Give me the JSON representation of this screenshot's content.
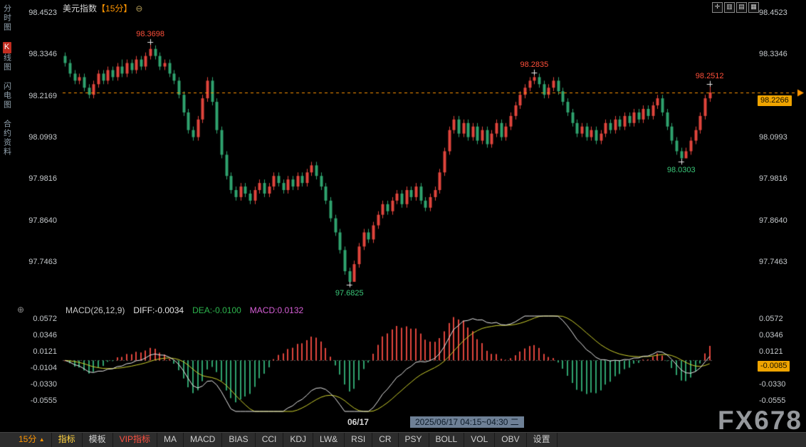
{
  "header": {
    "title": "美元指数",
    "interval_badge": "【15分】",
    "zoom_out_glyph": "⊖"
  },
  "top_right_icons": [
    {
      "name": "move-icon",
      "glyph": "✛"
    },
    {
      "name": "single-panel-icon",
      "glyph": "▥"
    },
    {
      "name": "dual-panel-icon",
      "glyph": "▤"
    },
    {
      "name": "grid-panel-icon",
      "glyph": "▦"
    }
  ],
  "sidebar": {
    "items": [
      {
        "prefix": "",
        "label": "分时图",
        "active": false
      },
      {
        "prefix": "K",
        "label": "线图",
        "active": true
      },
      {
        "prefix": "",
        "label": "闪电图",
        "active": false
      },
      {
        "prefix": "",
        "label": "合约资料",
        "active": false
      }
    ]
  },
  "price_axis": {
    "tick_labels": [
      "98.4523",
      "98.3346",
      "98.2169",
      "98.0993",
      "97.9816",
      "97.8640",
      "97.7463"
    ],
    "current_label": "98.2266"
  },
  "macd_axis": {
    "tick_labels": [
      "0.0572",
      "0.0346",
      "0.0121",
      "-0.0104",
      "-0.0330",
      "-0.0555"
    ],
    "current_label": "-0.0085"
  },
  "macd_header": {
    "name": "MACD(26,12,9)",
    "diff": "DIFF:-0.0034",
    "dea": "DEA:-0.0100",
    "macd": "MACD:0.0132"
  },
  "x_axis": {
    "date_label": "06/17",
    "timestamp_label": "2025/06/17 04:15~04:30 二"
  },
  "toolbar": {
    "interval_label": "15分",
    "interval_arrow": "▲",
    "items": [
      {
        "label": "指标",
        "style": "yellow"
      },
      {
        "label": "模板",
        "style": "normal"
      },
      {
        "label": "VIP指标",
        "style": "red"
      },
      {
        "label": "MA",
        "style": "normal"
      },
      {
        "label": "MACD",
        "style": "normal"
      },
      {
        "label": "BIAS",
        "style": "normal"
      },
      {
        "label": "CCI",
        "style": "normal"
      },
      {
        "label": "KDJ",
        "style": "normal"
      },
      {
        "label": "LW&",
        "style": "normal"
      },
      {
        "label": "RSI",
        "style": "normal"
      },
      {
        "label": "CR",
        "style": "normal"
      },
      {
        "label": "PSY",
        "style": "normal"
      },
      {
        "label": "BOLL",
        "style": "normal"
      },
      {
        "label": "VOL",
        "style": "normal"
      },
      {
        "label": "OBV",
        "style": "normal"
      },
      {
        "label": "设置",
        "style": "normal"
      }
    ]
  },
  "watermark": {
    "text": "FX678"
  },
  "indicator_icon_glyph": "⊕",
  "colors": {
    "up": "#e0453c",
    "down": "#2fa26e",
    "diff_line": "#eaeaea",
    "dea_line": "#cfd22e",
    "hist_up": "#e0453c",
    "hist_down": "#2fa26e",
    "accent": "#ff9500",
    "marker_bg": "#efa400",
    "marker_text": "#161000",
    "annotation_up": "#ff4f3a",
    "annotation_down": "#3ac779",
    "zero_line": "#555555"
  },
  "chart_data": [
    {
      "type": "candlestick",
      "symbol": "美元指数",
      "interval": "15分",
      "y_ticks": [
        98.4523,
        98.3346,
        98.2169,
        98.0993,
        97.9816,
        97.864,
        97.7463
      ],
      "ylim": [
        97.656,
        98.4523
      ],
      "current_price": 98.2266,
      "x_date_label": {
        "text": "06/17",
        "fraction": 0.455
      },
      "annotations": [
        {
          "index": 18,
          "price": 98.3698,
          "label": "98.3698",
          "side": "above",
          "color": "#ff4f3a"
        },
        {
          "index": 60,
          "price": 97.6825,
          "label": "97.6825",
          "side": "below",
          "color": "#3ac779"
        },
        {
          "index": 99,
          "price": 98.2835,
          "label": "98.2835",
          "side": "above",
          "color": "#ff4f3a"
        },
        {
          "index": 130,
          "price": 98.0303,
          "label": "98.0303",
          "side": "below",
          "color": "#3ac779"
        },
        {
          "index": 136,
          "price": 98.2512,
          "label": "98.2512",
          "side": "above",
          "color": "#ff4f3a"
        }
      ],
      "candles": [
        [
          98.33,
          98.34,
          98.3,
          98.31
        ],
        [
          98.31,
          98.32,
          98.27,
          98.28
        ],
        [
          98.28,
          98.29,
          98.25,
          98.26
        ],
        [
          98.26,
          98.28,
          98.25,
          98.27
        ],
        [
          98.27,
          98.28,
          98.23,
          98.24
        ],
        [
          98.24,
          98.25,
          98.21,
          98.22
        ],
        [
          98.22,
          98.26,
          98.21,
          98.25
        ],
        [
          98.25,
          98.29,
          98.24,
          98.28
        ],
        [
          98.28,
          98.29,
          98.25,
          98.26
        ],
        [
          98.26,
          98.3,
          98.25,
          98.29
        ],
        [
          98.29,
          98.3,
          98.26,
          98.27
        ],
        [
          98.27,
          98.31,
          98.26,
          98.3
        ],
        [
          98.3,
          98.32,
          98.27,
          98.28
        ],
        [
          98.28,
          98.32,
          98.27,
          98.31
        ],
        [
          98.31,
          98.32,
          98.28,
          98.29
        ],
        [
          98.29,
          98.33,
          98.28,
          98.32
        ],
        [
          98.32,
          98.33,
          98.29,
          98.3
        ],
        [
          98.3,
          98.34,
          98.29,
          98.33
        ],
        [
          98.33,
          98.3698,
          98.32,
          98.35
        ],
        [
          98.35,
          98.36,
          98.32,
          98.33
        ],
        [
          98.33,
          98.34,
          98.29,
          98.3
        ],
        [
          98.3,
          98.32,
          98.29,
          98.31
        ],
        [
          98.31,
          98.32,
          98.27,
          98.28
        ],
        [
          98.28,
          98.29,
          98.25,
          98.26
        ],
        [
          98.26,
          98.27,
          98.21,
          98.22
        ],
        [
          98.22,
          98.23,
          98.16,
          98.17
        ],
        [
          98.17,
          98.18,
          98.11,
          98.12
        ],
        [
          98.12,
          98.13,
          98.09,
          98.1
        ],
        [
          98.1,
          98.16,
          98.09,
          98.15
        ],
        [
          98.15,
          98.22,
          98.14,
          98.21
        ],
        [
          98.21,
          98.27,
          98.2,
          98.26
        ],
        [
          98.26,
          98.27,
          98.19,
          98.2
        ],
        [
          98.2,
          98.21,
          98.11,
          98.12
        ],
        [
          98.12,
          98.13,
          98.04,
          98.05
        ],
        [
          98.05,
          98.06,
          97.98,
          97.99
        ],
        [
          97.99,
          98.0,
          97.94,
          97.95
        ],
        [
          97.95,
          97.96,
          97.92,
          97.93
        ],
        [
          97.93,
          97.97,
          97.92,
          97.96
        ],
        [
          97.96,
          97.97,
          97.93,
          97.94
        ],
        [
          97.94,
          97.95,
          97.91,
          97.92
        ],
        [
          97.92,
          97.96,
          97.91,
          97.95
        ],
        [
          97.95,
          97.98,
          97.94,
          97.97
        ],
        [
          97.97,
          97.98,
          97.93,
          97.94
        ],
        [
          97.94,
          97.97,
          97.93,
          97.96
        ],
        [
          97.96,
          98.0,
          97.95,
          97.99
        ],
        [
          97.99,
          98.0,
          97.96,
          97.97
        ],
        [
          97.97,
          97.98,
          97.94,
          97.95
        ],
        [
          97.95,
          97.99,
          97.94,
          97.98
        ],
        [
          97.98,
          97.99,
          97.95,
          97.96
        ],
        [
          97.96,
          98.0,
          97.95,
          97.99
        ],
        [
          97.99,
          98.0,
          97.96,
          97.97
        ],
        [
          97.97,
          98.01,
          97.96,
          98.0
        ],
        [
          98.0,
          98.03,
          97.99,
          98.02
        ],
        [
          98.02,
          98.03,
          97.98,
          97.99
        ],
        [
          97.99,
          98.0,
          97.95,
          97.96
        ],
        [
          97.96,
          97.97,
          97.91,
          97.92
        ],
        [
          97.92,
          97.93,
          97.86,
          97.87
        ],
        [
          97.87,
          97.88,
          97.82,
          97.83
        ],
        [
          97.83,
          97.84,
          97.77,
          97.78
        ],
        [
          97.78,
          97.79,
          97.71,
          97.72
        ],
        [
          97.72,
          97.73,
          97.6825,
          97.69
        ],
        [
          97.69,
          97.75,
          97.69,
          97.74
        ],
        [
          97.74,
          97.8,
          97.73,
          97.79
        ],
        [
          97.79,
          97.84,
          97.78,
          97.83
        ],
        [
          97.83,
          97.84,
          97.8,
          97.81
        ],
        [
          97.81,
          97.86,
          97.8,
          97.85
        ],
        [
          97.85,
          97.89,
          97.84,
          97.88
        ],
        [
          97.88,
          97.92,
          97.87,
          97.91
        ],
        [
          97.91,
          97.92,
          97.88,
          97.89
        ],
        [
          97.89,
          97.93,
          97.88,
          97.92
        ],
        [
          97.92,
          97.95,
          97.91,
          97.94
        ],
        [
          97.94,
          97.95,
          97.9,
          97.91
        ],
        [
          97.91,
          97.96,
          97.9,
          97.95
        ],
        [
          97.95,
          97.96,
          97.92,
          97.93
        ],
        [
          97.93,
          97.97,
          97.92,
          97.96
        ],
        [
          97.96,
          97.97,
          97.91,
          97.92
        ],
        [
          97.92,
          97.93,
          97.89,
          97.9
        ],
        [
          97.9,
          97.94,
          97.89,
          97.93
        ],
        [
          97.93,
          97.96,
          97.92,
          97.95
        ],
        [
          97.95,
          98.01,
          97.94,
          98.0
        ],
        [
          98.0,
          98.07,
          97.99,
          98.06
        ],
        [
          98.06,
          98.13,
          98.05,
          98.12
        ],
        [
          98.12,
          98.16,
          98.11,
          98.15
        ],
        [
          98.15,
          98.16,
          98.1,
          98.11
        ],
        [
          98.11,
          98.15,
          98.1,
          98.14
        ],
        [
          98.14,
          98.15,
          98.09,
          98.1
        ],
        [
          98.1,
          98.14,
          98.09,
          98.13
        ],
        [
          98.13,
          98.14,
          98.08,
          98.09
        ],
        [
          98.09,
          98.13,
          98.08,
          98.12
        ],
        [
          98.12,
          98.13,
          98.07,
          98.08
        ],
        [
          98.08,
          98.12,
          98.07,
          98.11
        ],
        [
          98.11,
          98.15,
          98.1,
          98.14
        ],
        [
          98.14,
          98.15,
          98.09,
          98.1
        ],
        [
          98.1,
          98.14,
          98.09,
          98.13
        ],
        [
          98.13,
          98.17,
          98.12,
          98.16
        ],
        [
          98.16,
          98.2,
          98.15,
          98.19
        ],
        [
          98.19,
          98.23,
          98.18,
          98.22
        ],
        [
          98.22,
          98.25,
          98.21,
          98.24
        ],
        [
          98.24,
          98.27,
          98.23,
          98.26
        ],
        [
          98.26,
          98.2835,
          98.25,
          98.27
        ],
        [
          98.27,
          98.28,
          98.24,
          98.25
        ],
        [
          98.25,
          98.26,
          98.21,
          98.22
        ],
        [
          98.22,
          98.25,
          98.21,
          98.24
        ],
        [
          98.24,
          98.27,
          98.23,
          98.26
        ],
        [
          98.26,
          98.27,
          98.22,
          98.23
        ],
        [
          98.23,
          98.24,
          98.19,
          98.2
        ],
        [
          98.2,
          98.21,
          98.16,
          98.17
        ],
        [
          98.17,
          98.18,
          98.13,
          98.14
        ],
        [
          98.14,
          98.15,
          98.1,
          98.11
        ],
        [
          98.11,
          98.14,
          98.1,
          98.13
        ],
        [
          98.13,
          98.14,
          98.09,
          98.1
        ],
        [
          98.1,
          98.13,
          98.09,
          98.12
        ],
        [
          98.12,
          98.13,
          98.08,
          98.09
        ],
        [
          98.09,
          98.12,
          98.08,
          98.11
        ],
        [
          98.11,
          98.15,
          98.1,
          98.14
        ],
        [
          98.14,
          98.15,
          98.11,
          98.12
        ],
        [
          98.12,
          98.16,
          98.11,
          98.15
        ],
        [
          98.15,
          98.16,
          98.12,
          98.13
        ],
        [
          98.13,
          98.17,
          98.12,
          98.16
        ],
        [
          98.16,
          98.17,
          98.13,
          98.14
        ],
        [
          98.14,
          98.18,
          98.13,
          98.17
        ],
        [
          98.17,
          98.18,
          98.14,
          98.15
        ],
        [
          98.15,
          98.19,
          98.14,
          98.18
        ],
        [
          98.18,
          98.19,
          98.15,
          98.16
        ],
        [
          98.16,
          98.2,
          98.15,
          98.19
        ],
        [
          98.19,
          98.22,
          98.18,
          98.21
        ],
        [
          98.21,
          98.22,
          98.16,
          98.17
        ],
        [
          98.17,
          98.18,
          98.12,
          98.13
        ],
        [
          98.13,
          98.14,
          98.08,
          98.09
        ],
        [
          98.09,
          98.1,
          98.05,
          98.06
        ],
        [
          98.06,
          98.07,
          98.0303,
          98.04
        ],
        [
          98.04,
          98.07,
          98.04,
          98.06
        ],
        [
          98.06,
          98.1,
          98.05,
          98.09
        ],
        [
          98.09,
          98.13,
          98.08,
          98.12
        ],
        [
          98.12,
          98.17,
          98.11,
          98.16
        ],
        [
          98.16,
          98.22,
          98.15,
          98.21
        ],
        [
          98.21,
          98.2512,
          98.2,
          98.2266
        ]
      ]
    },
    {
      "type": "macd",
      "params": {
        "slow": 26,
        "fast": 12,
        "signal": 9
      },
      "y_ticks": [
        0.0572,
        0.0346,
        0.0121,
        -0.0104,
        -0.033,
        -0.0555
      ],
      "latest": {
        "diff": -0.0034,
        "dea": -0.01,
        "macd": 0.0132,
        "axis_marker": -0.0085
      },
      "derived_from": "candlestick closes"
    }
  ]
}
